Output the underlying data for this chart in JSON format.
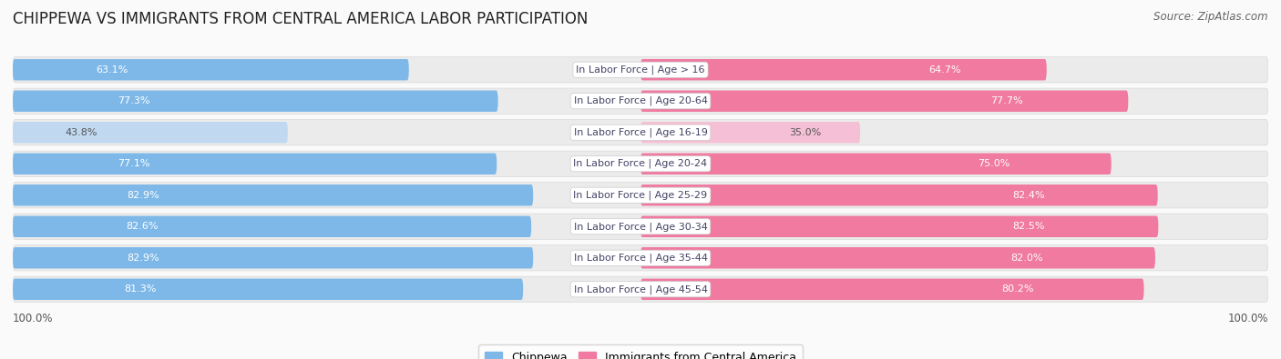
{
  "title": "CHIPPEWA VS IMMIGRANTS FROM CENTRAL AMERICA LABOR PARTICIPATION",
  "source": "Source: ZipAtlas.com",
  "categories": [
    "In Labor Force | Age > 16",
    "In Labor Force | Age 20-64",
    "In Labor Force | Age 16-19",
    "In Labor Force | Age 20-24",
    "In Labor Force | Age 25-29",
    "In Labor Force | Age 30-34",
    "In Labor Force | Age 35-44",
    "In Labor Force | Age 45-54"
  ],
  "chippewa": [
    63.1,
    77.3,
    43.8,
    77.1,
    82.9,
    82.6,
    82.9,
    81.3
  ],
  "immigrants": [
    64.7,
    77.7,
    35.0,
    75.0,
    82.4,
    82.5,
    82.0,
    80.2
  ],
  "chippewa_color": "#7EB8E8",
  "immigrants_color": "#F07AA0",
  "chippewa_light_color": "#C0D8F0",
  "immigrants_light_color": "#F5C0D5",
  "row_bg_color": "#EBEBEB",
  "row_outline_color": "#D8D8D8",
  "label_bg_color": "#FFFFFF",
  "label_text_color": "#444466",
  "title_fontsize": 12,
  "source_fontsize": 8.5,
  "bar_fontsize": 8,
  "label_fontsize": 8,
  "axis_label": "100.0%",
  "max_val": 100.0,
  "background_color": "#FAFAFA"
}
